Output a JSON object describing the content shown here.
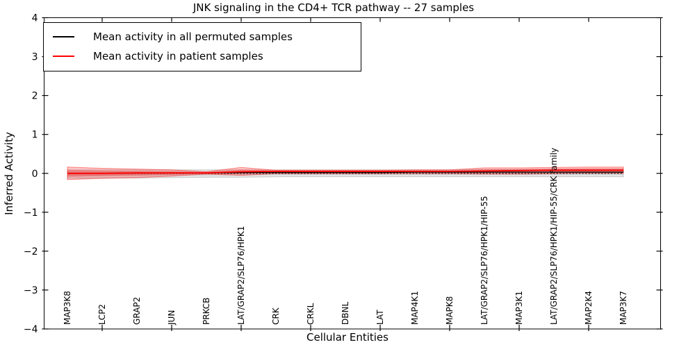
{
  "chart_data": {
    "type": "line",
    "title": "JNK signaling in the CD4+ TCR pathway -- 27 samples",
    "xlabel": "Cellular Entities",
    "ylabel": "Inferred Activity",
    "ylim": [
      -4,
      4
    ],
    "ytick_values": [
      4,
      3,
      2,
      1,
      0,
      -1,
      -2,
      -3,
      -4
    ],
    "ytick_labels": [
      "4",
      "3",
      "2",
      "1",
      "0",
      "−1",
      "−2",
      "−3",
      "−4"
    ],
    "grid": false,
    "legend_position": "upper-left",
    "legend": {
      "entries": [
        {
          "label": "Mean activity in all permuted samples",
          "color": "#000000"
        },
        {
          "label": "Mean activity in patient samples",
          "color": "#ff0000"
        }
      ]
    },
    "categories": [
      "MAP3K8",
      "LCP2",
      "GRAP2",
      "JUN",
      "PRKCB",
      "LAT/GRAP2/SLP76/HPK1",
      "CRK",
      "CRKL",
      "DBNL",
      "LAT",
      "MAP4K1",
      "MAPK8",
      "LAT/GRAP2/SLP76/HPK1/HIP-55",
      "MAP3K1",
      "LAT/GRAP2/SLP76/HPK1/HIP-55/CRK family",
      "MAP2K4",
      "MAP3K7"
    ],
    "series": [
      {
        "name": "permuted_mean",
        "style": "solid",
        "color": "#000000",
        "values": [
          0.0,
          0.0,
          0.01,
          0.01,
          0.01,
          0.02,
          0.02,
          0.02,
          0.02,
          0.02,
          0.03,
          0.03,
          0.03,
          0.03,
          0.03,
          0.03,
          0.03
        ]
      },
      {
        "name": "patient_mean",
        "style": "solid",
        "color": "#ff0000",
        "values": [
          0.0,
          0.0,
          0.01,
          0.01,
          0.01,
          0.04,
          0.05,
          0.05,
          0.05,
          0.05,
          0.05,
          0.05,
          0.06,
          0.07,
          0.08,
          0.08,
          0.08
        ]
      },
      {
        "name": "zero_reference",
        "style": "dotted",
        "color": "#000000",
        "values": [
          0,
          0,
          0,
          0,
          0,
          0,
          0,
          0,
          0,
          0,
          0,
          0,
          0,
          0,
          0,
          0,
          0
        ]
      }
    ],
    "bands": [
      {
        "name": "permuted_band",
        "color": "#bbbbbb",
        "upper": [
          0.09,
          0.09,
          0.09,
          0.09,
          0.09,
          0.09,
          0.09,
          0.09,
          0.09,
          0.09,
          0.09,
          0.09,
          0.1,
          0.1,
          0.11,
          0.11,
          0.11
        ],
        "lower": [
          -0.13,
          -0.12,
          -0.12,
          -0.11,
          -0.1,
          -0.1,
          -0.09,
          -0.09,
          -0.09,
          -0.09,
          -0.09,
          -0.09,
          -0.09,
          -0.09,
          -0.09,
          -0.09,
          -0.09
        ]
      },
      {
        "name": "patient_band",
        "color": "#ff0000",
        "upper": [
          0.16,
          0.13,
          0.11,
          0.09,
          0.04,
          0.15,
          0.08,
          0.08,
          0.08,
          0.08,
          0.09,
          0.09,
          0.14,
          0.14,
          0.15,
          0.16,
          0.16
        ],
        "lower": [
          -0.16,
          -0.13,
          -0.11,
          -0.07,
          -0.02,
          -0.05,
          -0.01,
          -0.01,
          -0.01,
          -0.01,
          -0.01,
          -0.01,
          -0.02,
          -0.02,
          -0.01,
          0.0,
          0.0
        ]
      }
    ],
    "xticks_at_indices": [
      1,
      3,
      5,
      7,
      9,
      11,
      13,
      15
    ]
  }
}
